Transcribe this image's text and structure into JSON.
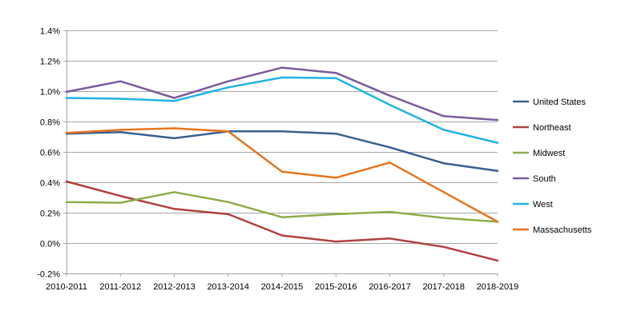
{
  "chart_data": {
    "type": "line",
    "title": "",
    "xlabel": "",
    "ylabel": "",
    "categories": [
      "2010-2011",
      "2011-2012",
      "2012-2013",
      "2013-2014",
      "2014-2015",
      "2015-2016",
      "2016-2017",
      "2017-2018",
      "2018-2019"
    ],
    "ylim": [
      -0.2,
      1.4
    ],
    "yticks": [
      -0.2,
      0.0,
      0.2,
      0.4,
      0.6,
      0.8,
      1.0,
      1.2,
      1.4
    ],
    "ytick_labels": [
      "-0.2%",
      "0.0%",
      "0.2%",
      "0.4%",
      "0.6%",
      "0.8%",
      "1.0%",
      "1.2%",
      "1.4%"
    ],
    "grid": true,
    "legend_position": "right",
    "series": [
      {
        "name": "United States",
        "color": "#3a5f8f",
        "values": [
          0.72,
          0.73,
          0.69,
          0.735,
          0.735,
          0.72,
          0.63,
          0.525,
          0.475
        ]
      },
      {
        "name": "Northeast",
        "color": "#b0413e",
        "values": [
          0.405,
          0.31,
          0.225,
          0.19,
          0.05,
          0.01,
          0.03,
          -0.025,
          -0.115
        ]
      },
      {
        "name": "Midwest",
        "color": "#8fab4a",
        "values": [
          0.27,
          0.265,
          0.335,
          0.27,
          0.17,
          0.19,
          0.205,
          0.165,
          0.14
        ]
      },
      {
        "name": "South",
        "color": "#7b5b9c",
        "values": [
          0.995,
          1.065,
          0.955,
          1.065,
          1.155,
          1.12,
          0.97,
          0.835,
          0.81
        ]
      },
      {
        "name": "West",
        "color": "#22b3e6",
        "values": [
          0.955,
          0.95,
          0.935,
          1.025,
          1.09,
          1.085,
          0.91,
          0.745,
          0.66
        ]
      },
      {
        "name": "Massachusetts",
        "color": "#e5751f",
        "values": [
          0.725,
          0.745,
          0.755,
          0.735,
          0.47,
          0.43,
          0.53,
          0.335,
          0.14
        ]
      }
    ]
  }
}
